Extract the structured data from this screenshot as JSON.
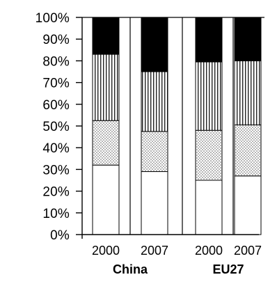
{
  "chart_data": {
    "type": "bar",
    "stacked": true,
    "percent_stacked": true,
    "title": "",
    "xlabel": "",
    "ylabel": "",
    "ylim": [
      0,
      100
    ],
    "yticks": [
      "0%",
      "10%",
      "20%",
      "30%",
      "40%",
      "50%",
      "60%",
      "70%",
      "80%",
      "90%",
      "100%"
    ],
    "categories": [
      "2000",
      "2007",
      "2000",
      "2007"
    ],
    "groups": [
      {
        "label": "China",
        "category_indices": [
          0,
          1
        ]
      },
      {
        "label": "EU27",
        "category_indices": [
          2,
          3
        ]
      }
    ],
    "series": [
      {
        "pattern": "white",
        "values": [
          32,
          29,
          25,
          27
        ]
      },
      {
        "pattern": "dotted",
        "values": [
          20.5,
          18.5,
          23,
          23.5
        ]
      },
      {
        "pattern": "vertical-lines",
        "values": [
          30.5,
          27.5,
          31.5,
          29.5
        ]
      },
      {
        "pattern": "black",
        "values": [
          17,
          25,
          20.5,
          20
        ]
      }
    ],
    "grid": false,
    "legend": "none",
    "colors": {
      "axis": "#000000",
      "bar_border": "#000000",
      "fill_white": "#ffffff",
      "fill_black": "#000000"
    }
  }
}
